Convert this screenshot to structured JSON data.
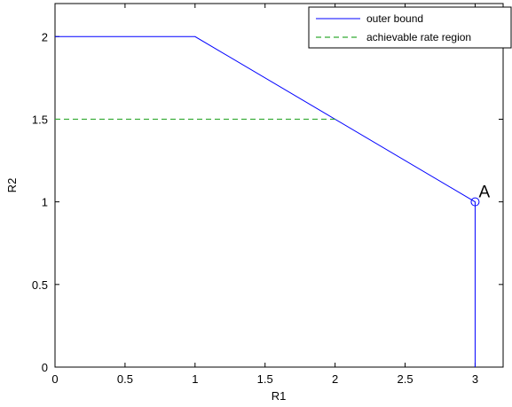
{
  "chart_data": {
    "type": "line",
    "title": "",
    "xlabel": "R1",
    "ylabel": "R2",
    "xlim": [
      0,
      3.2
    ],
    "ylim": [
      0,
      2.2
    ],
    "xticks": [
      0,
      0.5,
      1,
      1.5,
      2,
      2.5,
      3
    ],
    "yticks": [
      0,
      0.5,
      1,
      1.5,
      2
    ],
    "xtick_labels": [
      "0",
      "0.5",
      "1",
      "1.5",
      "2",
      "2.5",
      "3"
    ],
    "ytick_labels": [
      "0",
      "0.5",
      "1",
      "1.5",
      "2"
    ],
    "grid": false,
    "legend_position": "top-right",
    "series": [
      {
        "name": "outer bound",
        "color": "#0000ff",
        "line_style": "solid",
        "x": [
          0,
          1,
          3,
          3
        ],
        "y": [
          2,
          2,
          1,
          0
        ]
      },
      {
        "name": "achievable rate region",
        "color": "#33aa33",
        "line_style": "dashed",
        "x": [
          0,
          2
        ],
        "y": [
          1.5,
          1.5
        ]
      }
    ],
    "markers": [
      {
        "x": 3,
        "y": 1,
        "shape": "circle",
        "color": "#0000ff"
      }
    ],
    "annotations": [
      {
        "text": "A",
        "x": 3,
        "y": 1
      }
    ]
  }
}
